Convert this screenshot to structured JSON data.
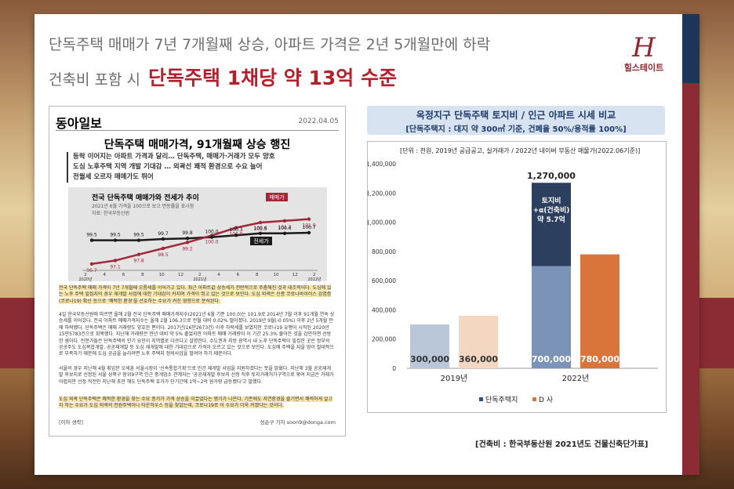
{
  "header": {
    "line1": "단독주택 매매가 7년 7개월째 상승, 아파트 가격은 2년 5개월만에 하락",
    "line2_prefix": "건축비 포함 시",
    "line2_emph": "단독주택 1채당 약 13억 수준"
  },
  "logo": {
    "mark": "H",
    "name": "힐스테이트"
  },
  "article": {
    "publisher": "동아일보",
    "date": "2022.04.05",
    "title": "단독주택 매매가격, 91개월째 상승 행진",
    "subtitles": [
      "등락 이어지는 아파트 가격과 달리… 단독주택, 매매가·거래가 모두 양호",
      "도심 노후주택 지역 개발 기대감 … 외곽선 쾌적 환경으로 수요 늘어",
      "전월세 오르자 매매가도 뛰어"
    ],
    "mini_chart": {
      "title": "전국 단독주택 매매가와 전세가 추이",
      "subtitle": "2021년 6월 가격을 100으로 보고 변동률을 표시함",
      "source": "자료: 한국부동산원",
      "label_sale": "매매가",
      "label_jeonse": "전세가",
      "months": [
        "2",
        "4",
        "6",
        "8",
        "10",
        "12",
        "2",
        "4",
        "6",
        "8",
        "10",
        "12",
        "2"
      ],
      "years": [
        "2020년",
        "2021년",
        "2022년"
      ],
      "sale_values": [
        "96.7",
        "97.1",
        "97.8",
        "98.5",
        "99.2",
        "100.0",
        "100.9",
        "101.5",
        "101.7",
        "101.9"
      ],
      "jeonse_values": [
        "99.5",
        "99.5",
        "99.5",
        "99.7",
        "99.8",
        "100.0",
        "100.3",
        "100.6",
        "100.6",
        "100.7"
      ]
    },
    "para1": "전국 단독주택 매매 가격이 7년 7개월째 오름세를 이어가고 있다. 최근 아파트값 상승세가 전반적으로 주춤해진 것과 대조적이다. 도심에 있는 노후 주택 밀집지의 경우 재개발 사업에 대한 기대감이 커지며 가격이 뛰고 있는 것으로 보인다. 도심 외곽은 신종 코로나바이러스 감염증(코로나19) 확산 등으로 '쾌적한 환경'을 선호하는 수요가 커진 영향으로 분석된다.",
    "para2": "4일 한국부동산원에 따르면 올해 2월 전국 단독주택 매매가격지수(2021년 6월 기준 100.0)는 101.9로 2014년 7월 이후 91개월 연속 상승세를 이어갔다. 전국 아파트 매매가격지수는 올해 2월 106.3으로 전월 대비 0.02% 떨어졌다. 2019년 9월(-0.05%) 이후 2년 5개월 만에 하락했다. 단독주택은 매매 거래량도 양호한 편이다. 2017년(16만2673건) 이후 하락세를 보였지만 코로나19 유행이 시작된 2020년 15만5783건으로 회복했다. 지난해 거래량은 전년 대비 약 5% 줄었지만 아파트 매매 거래량이 이 기간 25.3% 줄어든 것을 감안하면 선방한 셈이다. 전문가들은 단독주택의 인기 요인이 지역별로 다르다고 설명한다. 수도권과 지방 광역시 내 노후 단독주택이 밀집한 곳은 정부의 공공주도 도심복합개발, 공공재개발 등 도심 재개발에 대한 기대감으로 가격이 오르고 있는 것으로 보인다. 도심에 주택을 지을 땅이 절대적으로 부족하기 때문에 도심 공급을 늘리려면 노후 주택지 정비사업을 벌여야 하기 때문이다.",
    "para3": "서울의 경우 지난해 4월 취임한 오세훈 서울시장이 '신속통합기획'으로 민간 재개발 사업을 지원하겠다는 뜻을 밝혔다. 지난해 3월 공공재개발 후보지로 선정된 서울 성북구 장위9구역 인근 중개업소 관계자는 '공공재개발 후보지 선정 직후 토지거래허가구역으로 묶여 지금은 거래가 어렵지만 선정 직전인 지난해 초만 해도 단독주택 호가가 단기간에 1억~2억 원가량 급등했다'고 말했다.",
    "para4": "도심 외곽 단독주택은 쾌적한 환경을 찾는 수요 증가가 가격 상승을 이끌었다는 평가가 나온다. 기존에도 자연환경을 즐기면서 쾌적하게 살고자 하는 수요가 도심 외곽의 전원주택이나 타운하우스 등을 찾았는데, 코로나19로 이 수요가 더욱 커졌다는 것이다.",
    "more": "[이하 생략]",
    "byline": "성순구 기자 soon9@donga.com"
  },
  "right": {
    "title": "옥정지구 단독주택 토지비 / 인근 아파트 시세 비교",
    "subtitle": "[단독주택지 : 대지 약 300㎡ 기준, 건폐율 50%/용적률 100%]",
    "unit_note": "[단위 : 천원, 2019년 공급공고, 실거래가 / 2022년 네이버 부동산 매물가(2022.06기준)]",
    "source": "[건축비 : 한국부동산원 2021년도 건물신축단가표]"
  },
  "chart_data": {
    "type": "bar",
    "categories": [
      "2019년",
      "2022년"
    ],
    "series": [
      {
        "name": "단독주택지",
        "values": [
          300000,
          700000
        ],
        "color": "#bac7d9",
        "color2022": "#7b93b6"
      },
      {
        "name": "D 사",
        "values": [
          360000,
          780000
        ],
        "color": "#f3d7c1",
        "color2022": "#d9743a"
      }
    ],
    "stack_on_2022_land": {
      "value": 570000,
      "label_lines": [
        "토지비",
        "+α(건축비)",
        "약 5.7억"
      ],
      "total_label": "1,270,000",
      "color": "#2c3f5e"
    },
    "value_labels": [
      "300,000",
      "360,000",
      "700,000",
      "780,000"
    ],
    "ylim": [
      0,
      1400000
    ],
    "yticks": [
      "0",
      "200,000",
      "400,000",
      "600,000",
      "800,000",
      "1,000,000",
      "1,200,000",
      "1,400,000"
    ],
    "legend_position": "bottom"
  }
}
